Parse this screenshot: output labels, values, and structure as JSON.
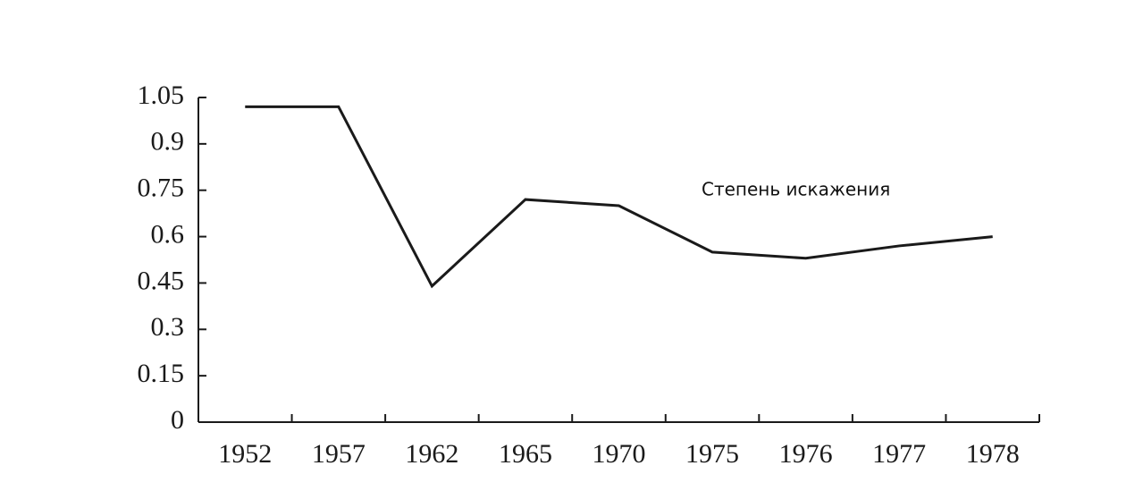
{
  "chart_data": {
    "type": "line",
    "categories": [
      "1952",
      "1957",
      "1962",
      "1965",
      "1970",
      "1975",
      "1976",
      "1977",
      "1978"
    ],
    "series": [
      {
        "name": "Степень искажения",
        "color": "#1a1a1a",
        "values": [
          1.02,
          1.02,
          0.44,
          0.72,
          0.7,
          0.55,
          0.53,
          0.57,
          0.6
        ]
      }
    ],
    "ylim": [
      0,
      1.05
    ],
    "yticks": [
      0,
      0.15,
      0.3,
      0.45,
      0.6,
      0.75,
      0.9,
      1.05
    ],
    "grid": false
  }
}
